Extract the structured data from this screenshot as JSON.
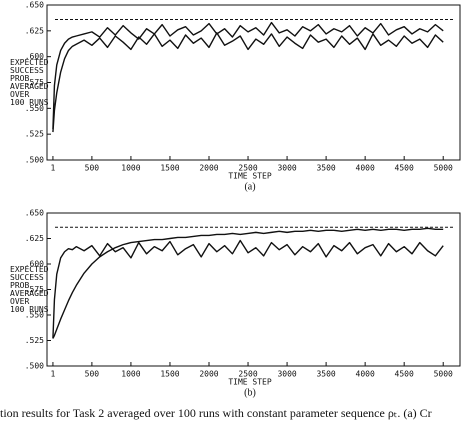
{
  "chart_data": [
    {
      "type": "line",
      "panel_label": "(a)",
      "x_label": "TIME STEP",
      "y_label": [
        "EXPECTED",
        "SUCCESS",
        "PROB",
        "AVERAGED",
        "OVER",
        "100 RUNS"
      ],
      "x": [
        1,
        20,
        50,
        100,
        150,
        200,
        250,
        300,
        400,
        500,
        600,
        700,
        800,
        900,
        1000,
        1100,
        1200,
        1300,
        1400,
        1500,
        1600,
        1700,
        1800,
        1900,
        2000,
        2100,
        2200,
        2300,
        2400,
        2500,
        2600,
        2700,
        2800,
        2900,
        3000,
        3100,
        3200,
        3300,
        3400,
        3500,
        3600,
        3700,
        3800,
        3900,
        4000,
        4100,
        4200,
        4300,
        4400,
        4500,
        4600,
        4700,
        4800,
        4900,
        5000
      ],
      "series": [
        {
          "color": "#111111",
          "values": [
            0.527,
            0.548,
            0.565,
            0.585,
            0.598,
            0.606,
            0.61,
            0.612,
            0.616,
            0.611,
            0.618,
            0.609,
            0.62,
            0.614,
            0.607,
            0.619,
            0.612,
            0.622,
            0.61,
            0.616,
            0.608,
            0.621,
            0.613,
            0.618,
            0.609,
            0.623,
            0.611,
            0.615,
            0.62,
            0.607,
            0.617,
            0.612,
            0.622,
            0.61,
            0.619,
            0.613,
            0.608,
            0.621,
            0.614,
            0.617,
            0.609,
            0.62,
            0.612,
            0.618,
            0.607,
            0.622,
            0.611,
            0.616,
            0.61,
            0.62,
            0.613,
            0.617,
            0.609,
            0.621,
            0.614
          ]
        },
        {
          "color": "#111111",
          "values": [
            0.53,
            0.572,
            0.592,
            0.606,
            0.613,
            0.617,
            0.619,
            0.62,
            0.622,
            0.624,
            0.619,
            0.628,
            0.621,
            0.63,
            0.623,
            0.617,
            0.627,
            0.622,
            0.631,
            0.62,
            0.626,
            0.629,
            0.621,
            0.625,
            0.632,
            0.622,
            0.627,
            0.619,
            0.63,
            0.624,
            0.628,
            0.621,
            0.633,
            0.623,
            0.626,
            0.62,
            0.629,
            0.625,
            0.631,
            0.622,
            0.627,
            0.624,
            0.63,
            0.62,
            0.628,
            0.623,
            0.632,
            0.621,
            0.626,
            0.629,
            0.622,
            0.627,
            0.624,
            0.631,
            0.625
          ]
        }
      ],
      "reference_line": 0.636,
      "xlim": [
        -75,
        5215
      ],
      "ylim": [
        0.5,
        0.65
      ],
      "xticks": [
        1,
        500,
        1000,
        1500,
        2000,
        2500,
        3000,
        3500,
        4000,
        4500,
        5000
      ],
      "yticks": [
        {
          "value": 0.5,
          "label": ".500"
        },
        {
          "value": 0.525,
          "label": ".525"
        },
        {
          "value": 0.55,
          "label": ".550"
        },
        {
          "value": 0.575,
          "label": ".575"
        },
        {
          "value": 0.6,
          "label": ".600"
        },
        {
          "value": 0.625,
          "label": ".625"
        },
        {
          "value": 0.65,
          "label": ".650"
        }
      ]
    },
    {
      "type": "line",
      "panel_label": "(b)",
      "x_label": "TIME STEP",
      "y_label": [
        "EXPECTED",
        "SUCCESS",
        "PROB",
        "AVERAGED",
        "OVER",
        "100 RUNS"
      ],
      "x": [
        1,
        20,
        50,
        100,
        150,
        200,
        250,
        300,
        400,
        500,
        600,
        700,
        800,
        900,
        1000,
        1100,
        1200,
        1300,
        1400,
        1500,
        1600,
        1700,
        1800,
        1900,
        2000,
        2100,
        2200,
        2300,
        2400,
        2500,
        2600,
        2700,
        2800,
        2900,
        3000,
        3100,
        3200,
        3300,
        3400,
        3500,
        3600,
        3700,
        3800,
        3900,
        4000,
        4100,
        4200,
        4300,
        4400,
        4500,
        4600,
        4700,
        4800,
        4900,
        5000
      ],
      "series": [
        {
          "color": "#111111",
          "values": [
            0.527,
            0.565,
            0.59,
            0.606,
            0.612,
            0.615,
            0.614,
            0.617,
            0.613,
            0.618,
            0.608,
            0.62,
            0.612,
            0.616,
            0.606,
            0.621,
            0.61,
            0.617,
            0.613,
            0.622,
            0.609,
            0.615,
            0.619,
            0.607,
            0.62,
            0.612,
            0.618,
            0.61,
            0.623,
            0.611,
            0.616,
            0.608,
            0.621,
            0.614,
            0.619,
            0.609,
            0.617,
            0.612,
            0.62,
            0.607,
            0.618,
            0.613,
            0.621,
            0.61,
            0.616,
            0.619,
            0.608,
            0.62,
            0.612,
            0.617,
            0.61,
            0.621,
            0.613,
            0.608,
            0.618
          ]
        },
        {
          "color": "#111111",
          "values": [
            0.527,
            0.53,
            0.536,
            0.546,
            0.555,
            0.564,
            0.572,
            0.579,
            0.591,
            0.6,
            0.607,
            0.612,
            0.616,
            0.619,
            0.621,
            0.622,
            0.623,
            0.624,
            0.624,
            0.625,
            0.626,
            0.626,
            0.627,
            0.628,
            0.628,
            0.629,
            0.629,
            0.63,
            0.629,
            0.63,
            0.631,
            0.63,
            0.631,
            0.632,
            0.631,
            0.632,
            0.632,
            0.633,
            0.632,
            0.633,
            0.633,
            0.632,
            0.633,
            0.634,
            0.633,
            0.634,
            0.633,
            0.634,
            0.634,
            0.633,
            0.634,
            0.634,
            0.635,
            0.634,
            0.634
          ]
        }
      ],
      "reference_line": 0.636,
      "xlim": [
        -75,
        5215
      ],
      "ylim": [
        0.5,
        0.65
      ],
      "xticks": [
        1,
        500,
        1000,
        1500,
        2000,
        2500,
        3000,
        3500,
        4000,
        4500,
        5000
      ],
      "yticks": [
        {
          "value": 0.5,
          "label": ".500"
        },
        {
          "value": 0.525,
          "label": ".525"
        },
        {
          "value": 0.55,
          "label": ".550"
        },
        {
          "value": 0.575,
          "label": ".575"
        },
        {
          "value": 0.6,
          "label": ".600"
        },
        {
          "value": 0.625,
          "label": ".625"
        },
        {
          "value": 0.65,
          "label": ".650"
        }
      ]
    }
  ],
  "caption": "tion results for Task 2 averaged over 100 runs with constant parameter sequence ρₜ. (a) Cr"
}
